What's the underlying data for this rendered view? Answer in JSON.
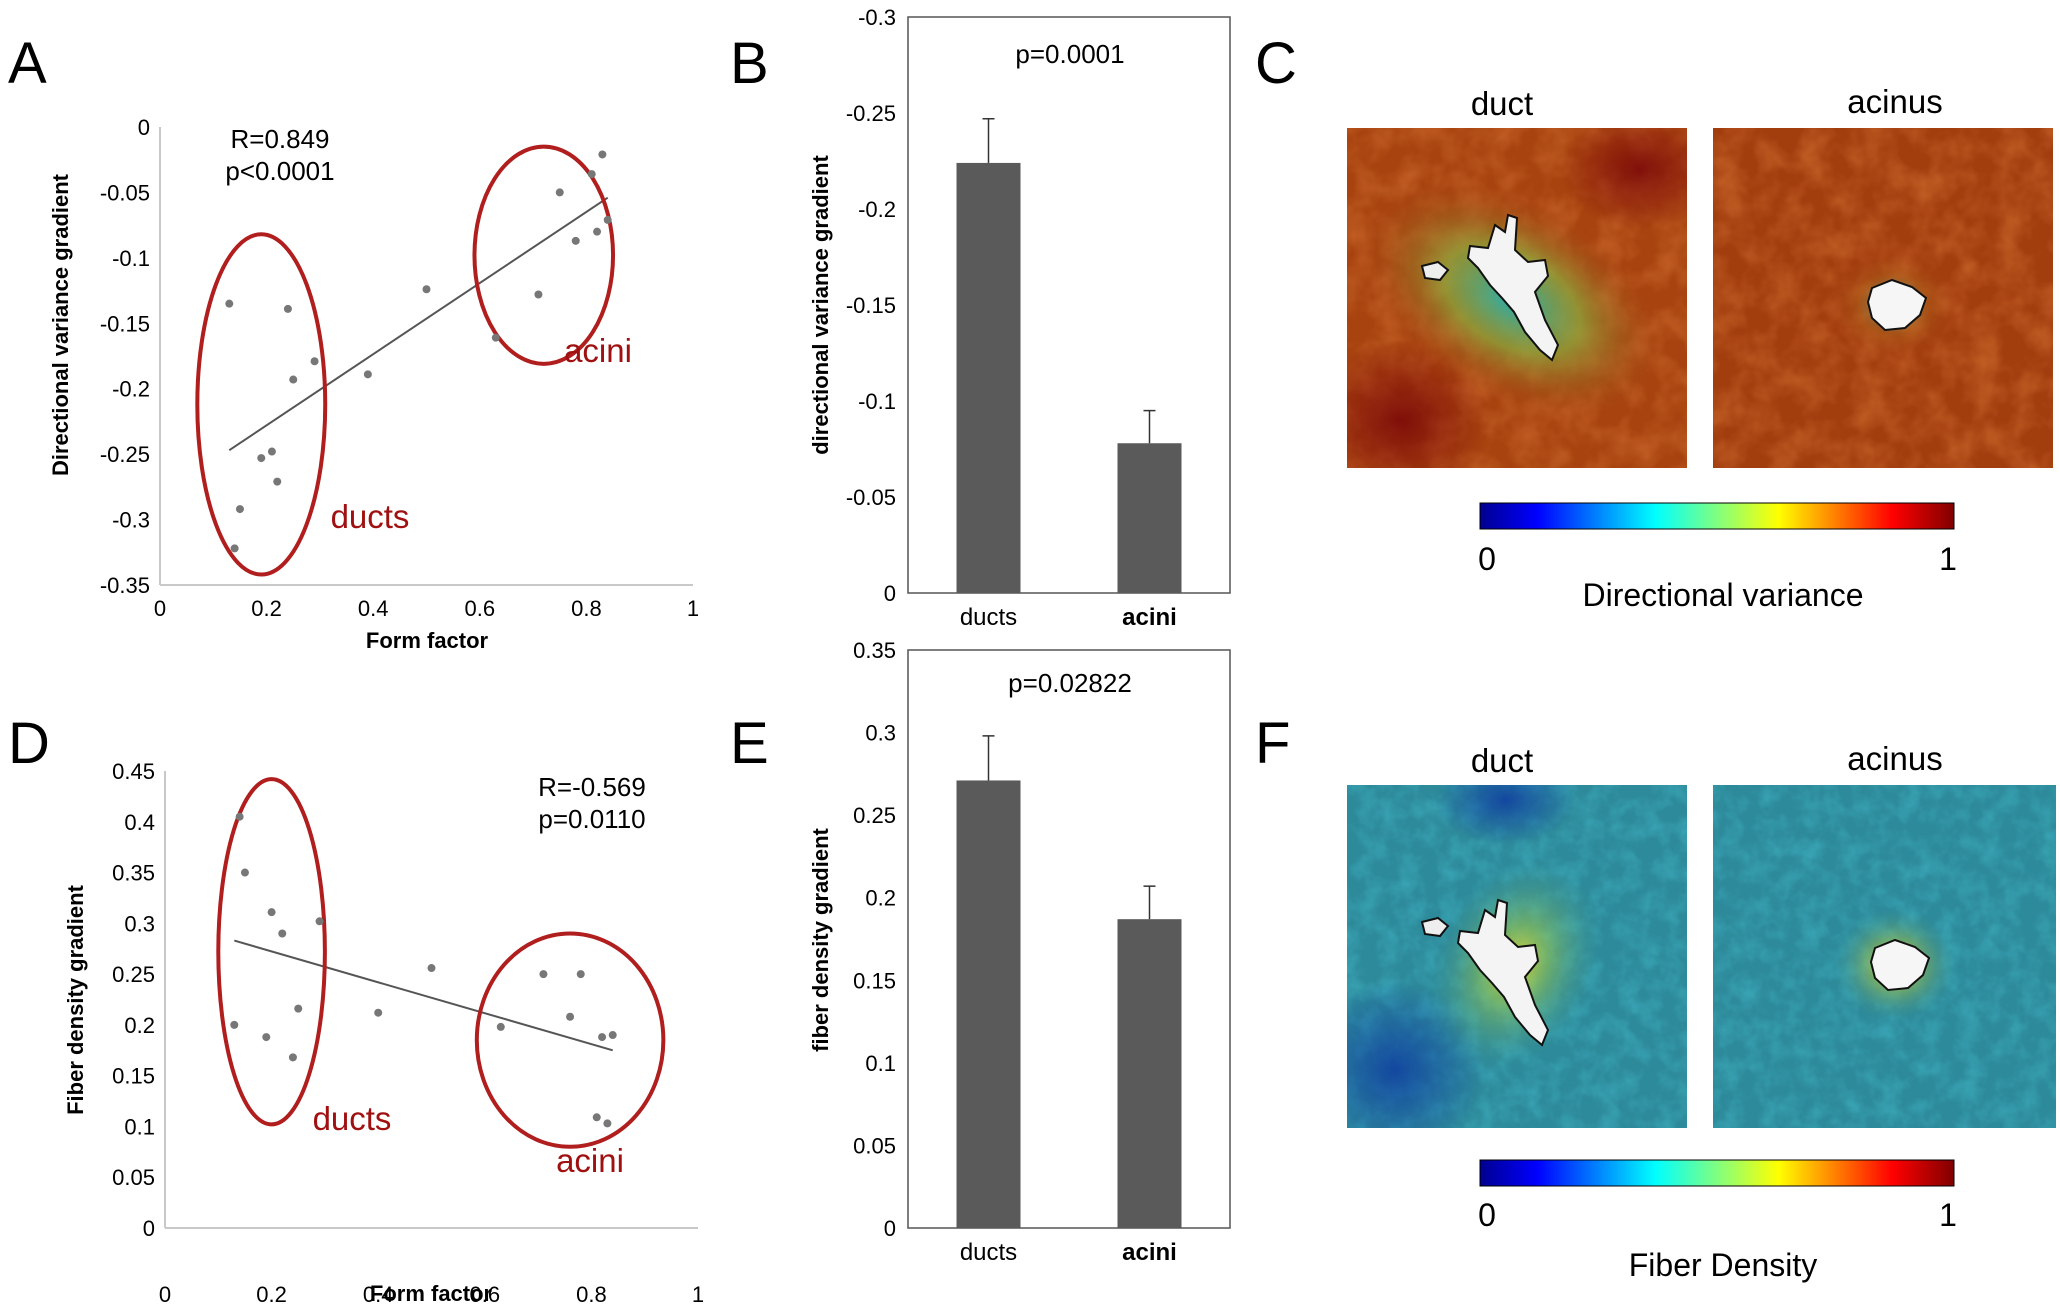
{
  "panel_labels": {
    "A": "A",
    "B": "B",
    "C": "C",
    "D": "D",
    "E": "E",
    "F": "F"
  },
  "panel_c": {
    "left_title": "duct",
    "right_title": "acinus",
    "colorbar_min": "0",
    "colorbar_max": "1",
    "colorbar_label": "Directional variance"
  },
  "panel_f": {
    "left_title": "duct",
    "right_title": "acinus",
    "colorbar_min": "0",
    "colorbar_max": "1",
    "colorbar_label": "Fiber Density"
  },
  "colors": {
    "ellipse": "#b01e1e",
    "point": "#777777",
    "bar": "#5a5a5a",
    "line": "#555555"
  },
  "chart_data": [
    {
      "id": "A",
      "type": "scatter",
      "xlabel": "Form factor",
      "ylabel": "Directional  variance gradient",
      "xlim": [
        0,
        1
      ],
      "ylim": [
        -0.35,
        0
      ],
      "xticks": [
        "0",
        "0.2",
        "0.4",
        "0.6",
        "0.8",
        "1"
      ],
      "yticks": [
        "0",
        "-0.05",
        "-0.1",
        "-0.15",
        "-0.2",
        "-0.25",
        "-0.3",
        "-0.35"
      ],
      "annotation_line1": "R=0.849",
      "annotation_line2": "p<0.0001",
      "group1_label": "ducts",
      "group2_label": "acini",
      "points": [
        [
          0.13,
          -0.135
        ],
        [
          0.14,
          -0.322
        ],
        [
          0.15,
          -0.292
        ],
        [
          0.19,
          -0.253
        ],
        [
          0.21,
          -0.248
        ],
        [
          0.22,
          -0.271
        ],
        [
          0.24,
          -0.139
        ],
        [
          0.25,
          -0.193
        ],
        [
          0.29,
          -0.179
        ],
        [
          0.39,
          -0.189
        ],
        [
          0.5,
          -0.124
        ],
        [
          0.63,
          -0.161
        ],
        [
          0.71,
          -0.128
        ],
        [
          0.75,
          -0.05
        ],
        [
          0.78,
          -0.087
        ],
        [
          0.81,
          -0.036
        ],
        [
          0.82,
          -0.08
        ],
        [
          0.83,
          -0.021
        ],
        [
          0.84,
          -0.071
        ]
      ],
      "trendline": [
        [
          0.13,
          -0.247
        ],
        [
          0.84,
          -0.054
        ]
      ],
      "ellipses": [
        {
          "cx": 0.19,
          "cy": -0.212,
          "rx": 0.12,
          "ry": 0.13
        },
        {
          "cx": 0.72,
          "cy": -0.098,
          "rx": 0.13,
          "ry": 0.083
        }
      ]
    },
    {
      "id": "B",
      "type": "bar",
      "ylabel": "directional  variance gradient",
      "ylim": [
        0,
        -0.3
      ],
      "yticks": [
        "0",
        "-0.05",
        "-0.1",
        "-0.15",
        "-0.2",
        "-0.25",
        "-0.3"
      ],
      "title": "p=0.0001",
      "categories": [
        "ducts",
        "acini"
      ],
      "values": [
        -0.224,
        -0.078
      ],
      "errors": [
        0.023,
        0.017
      ]
    },
    {
      "id": "D",
      "type": "scatter",
      "xlabel": "Form factor",
      "ylabel": "Fiber density gradient",
      "xlim": [
        0,
        1
      ],
      "ylim": [
        0,
        0.45
      ],
      "xticks": [
        "0",
        "0.2",
        "0.4",
        "0.6",
        "0.8",
        "1"
      ],
      "yticks": [
        "0",
        "0.05",
        "0.1",
        "0.15",
        "0.2",
        "0.25",
        "0.3",
        "0.35",
        "0.4",
        "0.45"
      ],
      "annotation_line1": "R=-0.569",
      "annotation_line2": "p=0.0110",
      "group1_label": "ducts",
      "group2_label": "acini",
      "points": [
        [
          0.13,
          0.2
        ],
        [
          0.14,
          0.405
        ],
        [
          0.15,
          0.35
        ],
        [
          0.19,
          0.188
        ],
        [
          0.2,
          0.311
        ],
        [
          0.22,
          0.29
        ],
        [
          0.24,
          0.168
        ],
        [
          0.25,
          0.216
        ],
        [
          0.29,
          0.302
        ],
        [
          0.4,
          0.212
        ],
        [
          0.5,
          0.256
        ],
        [
          0.63,
          0.198
        ],
        [
          0.71,
          0.25
        ],
        [
          0.76,
          0.208
        ],
        [
          0.78,
          0.25
        ],
        [
          0.81,
          0.109
        ],
        [
          0.82,
          0.188
        ],
        [
          0.83,
          0.103
        ],
        [
          0.84,
          0.19
        ]
      ],
      "trendline": [
        [
          0.13,
          0.283
        ],
        [
          0.84,
          0.175
        ]
      ],
      "ellipses": [
        {
          "cx": 0.2,
          "cy": 0.272,
          "rx": 0.1,
          "ry": 0.17
        },
        {
          "cx": 0.76,
          "cy": 0.185,
          "rx": 0.175,
          "ry": 0.105
        }
      ]
    },
    {
      "id": "E",
      "type": "bar",
      "ylabel": "fiber density gradient",
      "ylim": [
        0,
        0.35
      ],
      "yticks": [
        "0",
        "0.05",
        "0.1",
        "0.15",
        "0.2",
        "0.25",
        "0.3",
        "0.35"
      ],
      "title": "p=0.02822",
      "categories": [
        "ducts",
        "acini"
      ],
      "values": [
        0.271,
        0.187
      ],
      "errors": [
        0.027,
        0.02
      ]
    }
  ]
}
